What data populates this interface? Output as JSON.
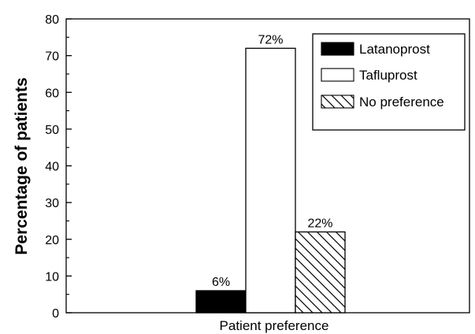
{
  "chart_data": {
    "type": "bar",
    "title": "",
    "xlabel": "Patient preference",
    "ylabel": "Percentage of patients",
    "ylim": [
      0,
      80
    ],
    "y_ticks": [
      "0",
      "10",
      "20",
      "30",
      "40",
      "50",
      "60",
      "70",
      "80"
    ],
    "grid": false,
    "legend_position": "top-right",
    "series": [
      {
        "name": "Latanoprost",
        "value": 6,
        "label": "6%",
        "fill": "solid-black"
      },
      {
        "name": "Tafluprost",
        "value": 72,
        "label": "72%",
        "fill": "white"
      },
      {
        "name": "No preference",
        "value": 22,
        "label": "22%",
        "fill": "diagonal-hatch"
      }
    ]
  }
}
